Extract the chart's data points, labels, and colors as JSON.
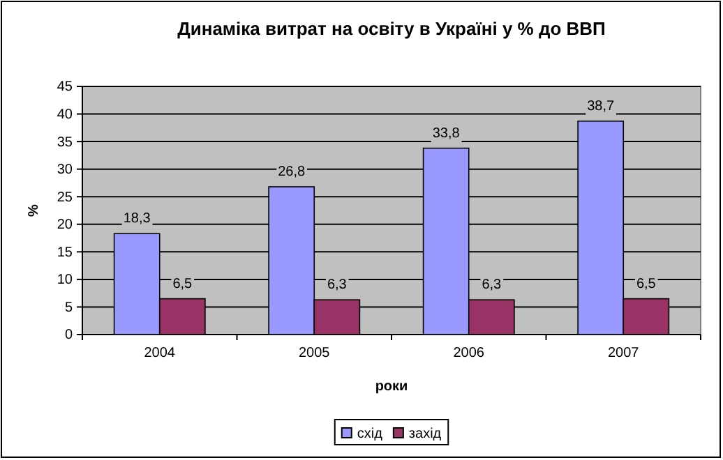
{
  "chart_data": {
    "type": "bar",
    "title": "Динаміка витрат на освіту в Україні у % до ВВП",
    "xlabel": "роки",
    "ylabel": "%",
    "categories": [
      "2004",
      "2005",
      "2006",
      "2007"
    ],
    "series": [
      {
        "name": "схід",
        "color": "#9999ff",
        "values": [
          18.3,
          26.8,
          33.8,
          38.7
        ],
        "value_labels": [
          "18,3",
          "26,8",
          "33,8",
          "38,7"
        ]
      },
      {
        "name": "захід",
        "color": "#993366",
        "values": [
          6.5,
          6.3,
          6.3,
          6.5
        ],
        "value_labels": [
          "6,5",
          "6,3",
          "6,3",
          "6,5"
        ]
      }
    ],
    "ylim": [
      0,
      45
    ],
    "yticks": [
      0,
      5,
      10,
      15,
      20,
      25,
      30,
      35,
      40,
      45
    ],
    "grid": "y",
    "legend": "bottom"
  }
}
